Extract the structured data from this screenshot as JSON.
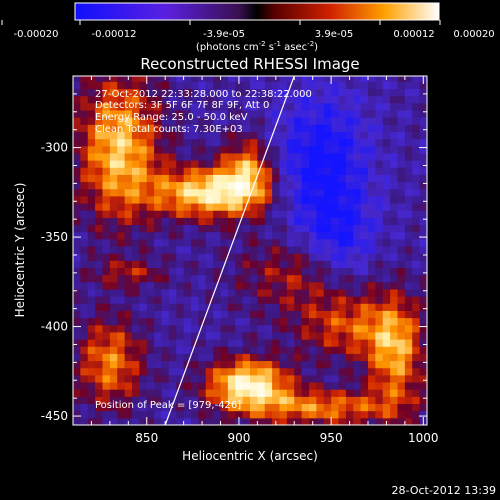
{
  "chart_data": {
    "type": "heatmap",
    "title": "Reconstructed RHESSI Image",
    "xlabel": "Heliocentric X (arcsec)",
    "ylabel": "Heliocentric Y (arcsec)",
    "xlim": [
      810,
      1002
    ],
    "ylim": [
      -455,
      -260
    ],
    "x_ticks": [
      "850",
      "900",
      "950",
      "1000"
    ],
    "x_tick_values": [
      850,
      900,
      950,
      1000
    ],
    "y_ticks": [
      "-300",
      "-350",
      "-400",
      "-450"
    ],
    "y_tick_values": [
      -300,
      -350,
      -400,
      -450
    ],
    "colorbar": {
      "ticks": [
        "-0.00020",
        "-0.00012",
        "-3.9e-05",
        "3.9e-05",
        "0.00012",
        "0.00020"
      ],
      "range": [
        -0.0002,
        0.0002
      ],
      "units_main": "(photons cm",
      "units_exp1": "-2",
      "units_mid": " s",
      "units_exp2": "-1",
      "units_tail": " asec",
      "units_exp3": "-2",
      "units_close": ")"
    },
    "annotations": [
      "27-Oct-2012 22:33:28.000 to 22:38:22.000",
      "Detectors: 3F 5F 6F 7F 8F 9F, Att 0",
      "Energy Range: 25.0 - 50.0 keV",
      "Clean    Total counts: 7.30E+03"
    ],
    "peak_label": "Position of Peak = [979,-426]",
    "peak": [
      979,
      -426
    ],
    "limb_line": [
      [
        860,
        -455
      ],
      [
        930,
        -260
      ]
    ]
  },
  "footer": {
    "timestamp": "28-Oct-2012 13:39"
  }
}
